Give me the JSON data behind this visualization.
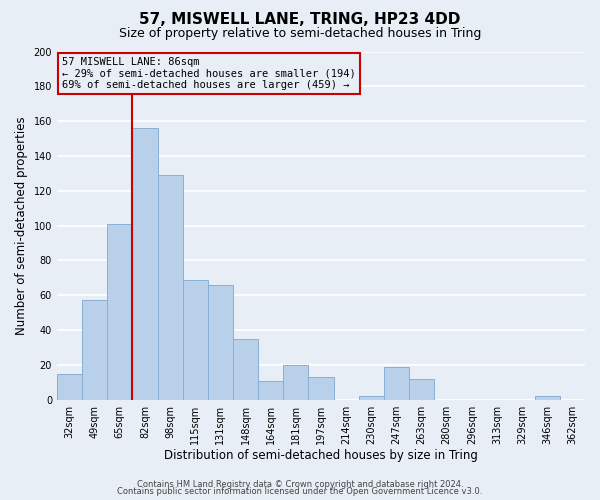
{
  "title": "57, MISWELL LANE, TRING, HP23 4DD",
  "subtitle": "Size of property relative to semi-detached houses in Tring",
  "xlabel": "Distribution of semi-detached houses by size in Tring",
  "ylabel": "Number of semi-detached properties",
  "categories": [
    "32sqm",
    "49sqm",
    "65sqm",
    "82sqm",
    "98sqm",
    "115sqm",
    "131sqm",
    "148sqm",
    "164sqm",
    "181sqm",
    "197sqm",
    "214sqm",
    "230sqm",
    "247sqm",
    "263sqm",
    "280sqm",
    "296sqm",
    "313sqm",
    "329sqm",
    "346sqm",
    "362sqm"
  ],
  "values": [
    15,
    57,
    101,
    156,
    129,
    69,
    66,
    35,
    11,
    20,
    13,
    0,
    2,
    19,
    12,
    0,
    0,
    0,
    0,
    2,
    0
  ],
  "bar_color": "#b8d0ea",
  "bar_edge_color": "#8aafd4",
  "red_line_color": "#cc0000",
  "red_line_x": 2.5,
  "annotation_box_text_line1": "57 MISWELL LANE: 86sqm",
  "annotation_box_text_line2": "← 29% of semi-detached houses are smaller (194)",
  "annotation_box_text_line3": "69% of semi-detached houses are larger (459) →",
  "annotation_box_color": "#cc0000",
  "ylim": [
    0,
    200
  ],
  "yticks": [
    0,
    20,
    40,
    60,
    80,
    100,
    120,
    140,
    160,
    180,
    200
  ],
  "footer_line1": "Contains HM Land Registry data © Crown copyright and database right 2024.",
  "footer_line2": "Contains public sector information licensed under the Open Government Licence v3.0.",
  "bg_color": "#e8eef5",
  "plot_bg_color": "#e8eef5",
  "grid_color": "#ffffff",
  "title_fontsize": 11,
  "subtitle_fontsize": 9,
  "axis_label_fontsize": 8.5,
  "tick_fontsize": 7,
  "footer_fontsize": 6,
  "annotation_fontsize": 7.5
}
